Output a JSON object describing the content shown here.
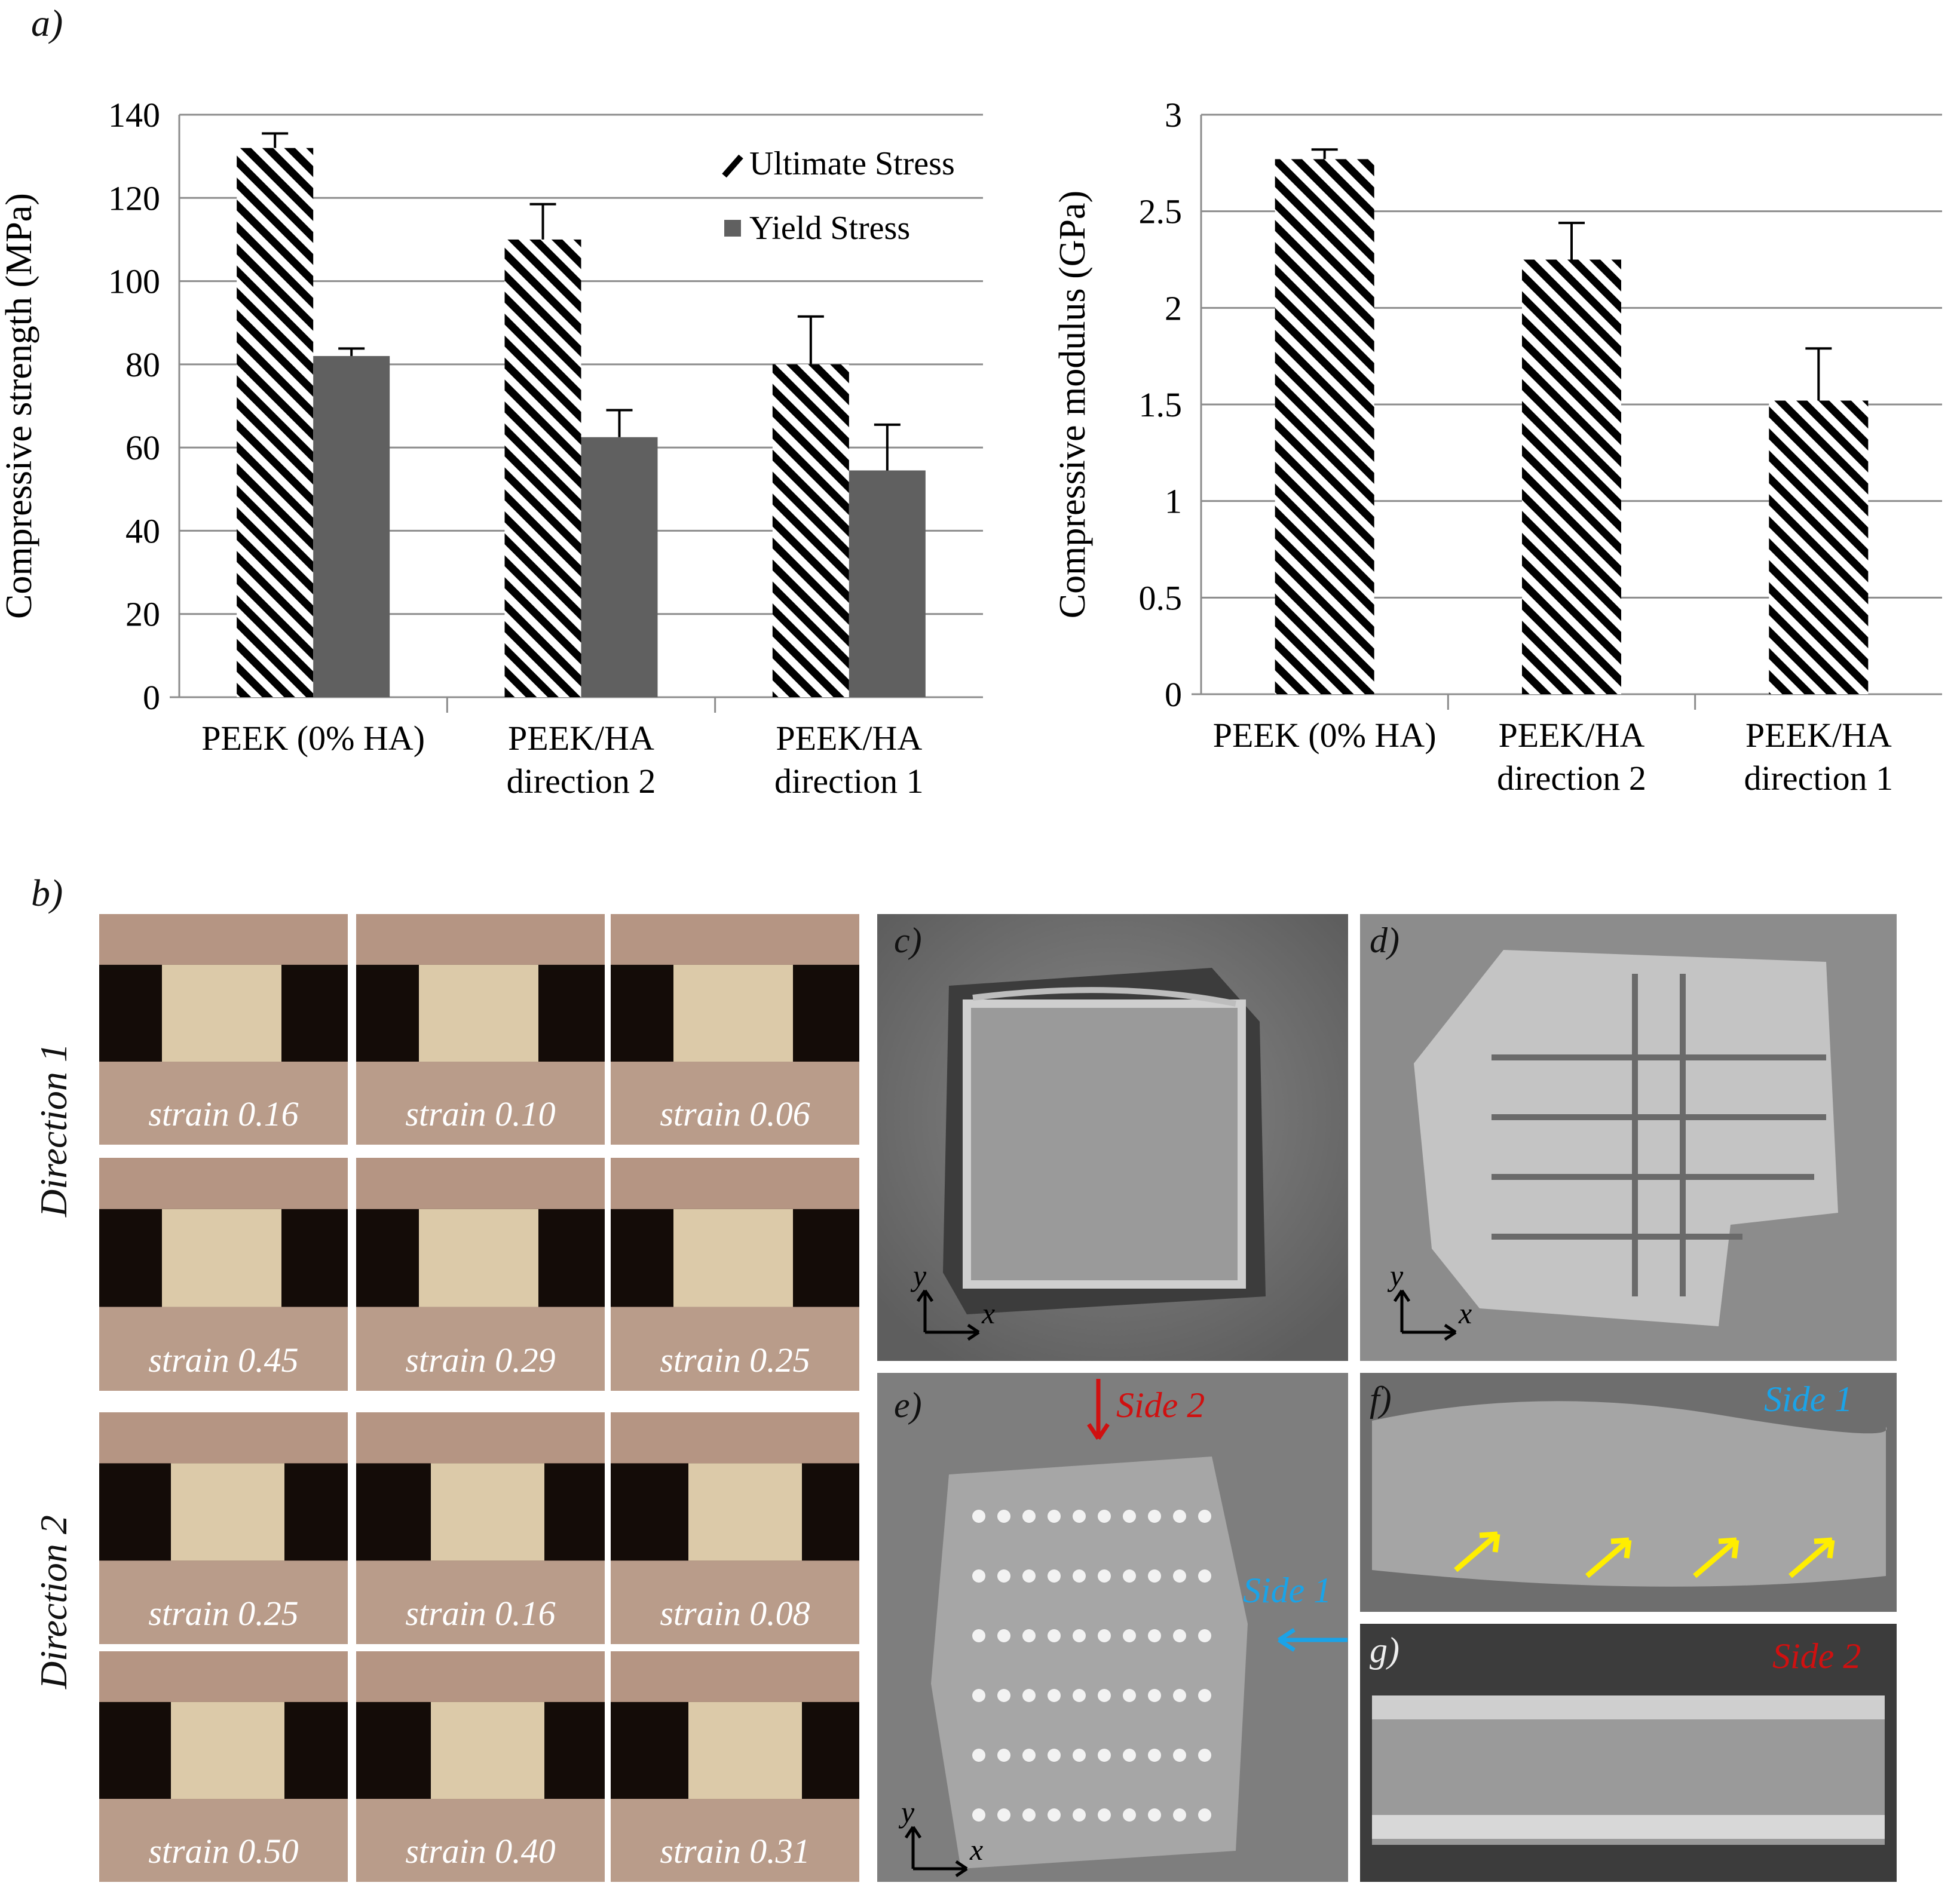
{
  "labels": {
    "a": "a)",
    "b": "b)",
    "c": "c)",
    "d": "d)",
    "e": "e)",
    "f": "f)",
    "g": "g)"
  },
  "chart_data": [
    {
      "type": "bar",
      "ylabel": "Compressive strength (MPa)",
      "ylim": [
        0,
        140
      ],
      "yticks": [
        0,
        20,
        40,
        60,
        80,
        100,
        120,
        140
      ],
      "categories": [
        [
          "PEEK (0% HA)"
        ],
        [
          "PEEK/HA",
          "direction 2"
        ],
        [
          "PEEK/HA",
          "direction 1"
        ]
      ],
      "legend_position": "top-right",
      "grid": true,
      "series": [
        {
          "name": "Ultimate Stress",
          "values": [
            132,
            110,
            80
          ],
          "errors": [
            3.5,
            8.5,
            11.5
          ],
          "pattern": "diagonal-hatch",
          "color": "#000000"
        },
        {
          "name": "Yield Stress",
          "values": [
            82,
            62.5,
            54.5
          ],
          "errors": [
            1.8,
            6.5,
            11
          ],
          "pattern": "solid",
          "color": "#606060"
        }
      ]
    },
    {
      "type": "bar",
      "ylabel": "Compressive modulus (GPa)",
      "ylim": [
        0,
        3
      ],
      "yticks": [
        "0",
        "0.5",
        "1",
        "1.5",
        "2",
        "2.5",
        "3"
      ],
      "categories": [
        [
          "PEEK (0% HA)"
        ],
        [
          "PEEK/HA",
          "direction 2"
        ],
        [
          "PEEK/HA",
          "direction 1"
        ]
      ],
      "grid": true,
      "series": [
        {
          "values": [
            2.77,
            2.25,
            1.52
          ],
          "errors": [
            0.05,
            0.19,
            0.27
          ],
          "pattern": "diagonal-hatch",
          "color": "#000000"
        }
      ]
    }
  ],
  "strain_grid": {
    "direction1_label": "Direction 1",
    "direction2_label": "Direction 2",
    "rows": [
      [
        "strain 0.16",
        "strain 0.10",
        "strain 0.06"
      ],
      [
        "strain 0.45",
        "strain 0.29",
        "strain 0.25"
      ],
      [
        "strain 0.25",
        "strain 0.16",
        "strain 0.08"
      ],
      [
        "strain 0.50",
        "strain 0.40",
        "strain 0.31"
      ]
    ]
  },
  "sem": {
    "axis_x": "x",
    "axis_y": "y",
    "side1": "Side 1",
    "side2": "Side 2",
    "side1_color": "#1aa3e8",
    "side2_color": "#d01010",
    "arrow_color": "#ffee00"
  }
}
